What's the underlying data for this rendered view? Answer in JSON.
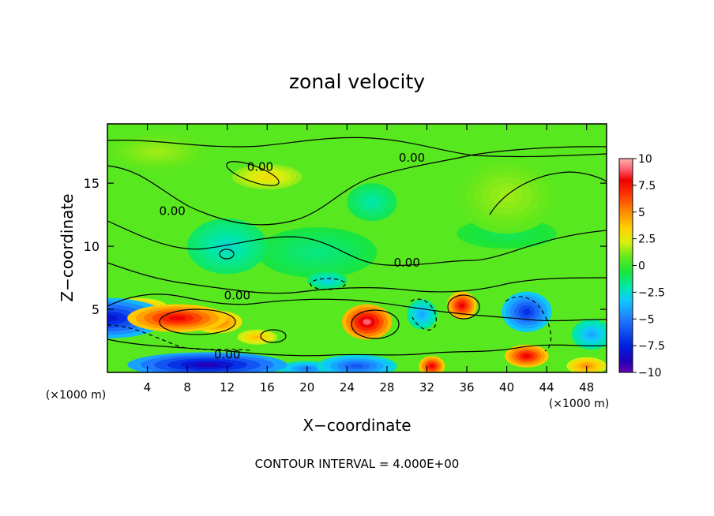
{
  "chart_data": {
    "type": "heatmap",
    "title": "zonal velocity",
    "xlabel": "X−coordinate",
    "ylabel": "Z−coordinate",
    "x_unit_left": "(×1000 m)",
    "x_unit_right": "(×1000 m)",
    "footer": "CONTOUR INTERVAL = 4.000E+00",
    "xlim": [
      0,
      50
    ],
    "ylim": [
      0,
      19.7
    ],
    "x_ticks": [
      4,
      8,
      12,
      16,
      20,
      24,
      28,
      32,
      36,
      40,
      44,
      48
    ],
    "y_ticks": [
      5,
      10,
      15
    ],
    "colorbar": {
      "range": [
        -10,
        10
      ],
      "ticks": [
        {
          "value": 10,
          "label": "10"
        },
        {
          "value": 7.5,
          "label": "7.5"
        },
        {
          "value": 5,
          "label": "5"
        },
        {
          "value": 2.5,
          "label": "2.5"
        },
        {
          "value": 0,
          "label": "0"
        },
        {
          "value": -2.5,
          "label": "−2.5"
        },
        {
          "value": -5,
          "label": "−5"
        },
        {
          "value": -7.5,
          "label": "−7.5"
        },
        {
          "value": -10,
          "label": "−10"
        }
      ],
      "stops": [
        {
          "v": -10,
          "c": "#6a00b0"
        },
        {
          "v": -9,
          "c": "#2200bb"
        },
        {
          "v": -7.5,
          "c": "#0020e0"
        },
        {
          "v": -5,
          "c": "#1f7cff"
        },
        {
          "v": -3.3,
          "c": "#10c8ff"
        },
        {
          "v": -2,
          "c": "#00e8a8"
        },
        {
          "v": -0.6,
          "c": "#1ae53a"
        },
        {
          "v": 0.8,
          "c": "#62e81b"
        },
        {
          "v": 2.2,
          "c": "#d8f010"
        },
        {
          "v": 3.5,
          "c": "#ffd000"
        },
        {
          "v": 5,
          "c": "#ff8c00"
        },
        {
          "v": 6.5,
          "c": "#ff3c00"
        },
        {
          "v": 8,
          "c": "#f00000"
        },
        {
          "v": 9,
          "c": "#ff6070"
        },
        {
          "v": 10,
          "c": "#ffb0b0"
        }
      ]
    },
    "contour_labels": [
      {
        "x": 15.3,
        "z": 16.3,
        "text": "0.00"
      },
      {
        "x": 30.5,
        "z": 17.0,
        "text": "0.00"
      },
      {
        "x": 6.5,
        "z": 12.8,
        "text": "0.00"
      },
      {
        "x": 30.0,
        "z": 8.7,
        "text": "0.00"
      },
      {
        "x": 13.0,
        "z": 6.1,
        "text": "0.00"
      },
      {
        "x": 12.0,
        "z": 1.4,
        "text": "0.00"
      }
    ],
    "field_blobs": [
      {
        "x": 0,
        "z": 4.3,
        "rx": 6,
        "rz": 1.6,
        "v": -8
      },
      {
        "x": 10,
        "z": 0.6,
        "rx": 8,
        "rz": 1.0,
        "v": -9
      },
      {
        "x": 25,
        "z": 0.5,
        "rx": 4,
        "rz": 0.9,
        "v": -6
      },
      {
        "x": 20,
        "z": 0.3,
        "rx": 3,
        "rz": 0.6,
        "v": -5
      },
      {
        "x": 7,
        "z": 4.3,
        "rx": 5,
        "rz": 1.1,
        "v": 8
      },
      {
        "x": 11,
        "z": 4.0,
        "rx": 2.5,
        "rz": 0.9,
        "v": 6
      },
      {
        "x": 3,
        "z": 5.2,
        "rx": 3,
        "rz": 0.7,
        "v": 5
      },
      {
        "x": 26,
        "z": 4.0,
        "rx": 2.5,
        "rz": 1.4,
        "v": 9
      },
      {
        "x": 15,
        "z": 2.8,
        "rx": 2,
        "rz": 0.6,
        "v": 4
      },
      {
        "x": 32.5,
        "z": 0.5,
        "rx": 1.3,
        "rz": 0.8,
        "v": 8
      },
      {
        "x": 35.5,
        "z": 5.3,
        "rx": 1.5,
        "rz": 1.1,
        "v": 8
      },
      {
        "x": 42,
        "z": 1.3,
        "rx": 2.2,
        "rz": 0.9,
        "v": 8
      },
      {
        "x": 48,
        "z": 0.5,
        "rx": 2,
        "rz": 0.7,
        "v": 5
      },
      {
        "x": 42,
        "z": 4.8,
        "rx": 2.5,
        "rz": 1.6,
        "v": -7
      },
      {
        "x": 31.5,
        "z": 4.6,
        "rx": 1.5,
        "rz": 1.2,
        "v": -4
      },
      {
        "x": 48.5,
        "z": 3,
        "rx": 2,
        "rz": 1.2,
        "v": -4
      },
      {
        "x": 16,
        "z": 15.5,
        "rx": 3.5,
        "rz": 1.0,
        "v": 3
      },
      {
        "x": 12,
        "z": 10,
        "rx": 4,
        "rz": 2.2,
        "v": -2.5
      },
      {
        "x": 22,
        "z": 7.3,
        "rx": 2,
        "rz": 0.7,
        "v": -3
      },
      {
        "x": 21,
        "z": 9.5,
        "rx": 6,
        "rz": 2,
        "v": -1.5
      },
      {
        "x": 26.5,
        "z": 13.5,
        "rx": 2.5,
        "rz": 1.5,
        "v": -2
      },
      {
        "x": 40,
        "z": 14,
        "rx": 5,
        "rz": 3,
        "v": 1.5
      },
      {
        "x": 5,
        "z": 17.5,
        "rx": 5,
        "rz": 1.5,
        "v": 1.5
      },
      {
        "x": 40,
        "z": 11,
        "rx": 5,
        "rz": 1.2,
        "v": -1
      }
    ]
  }
}
